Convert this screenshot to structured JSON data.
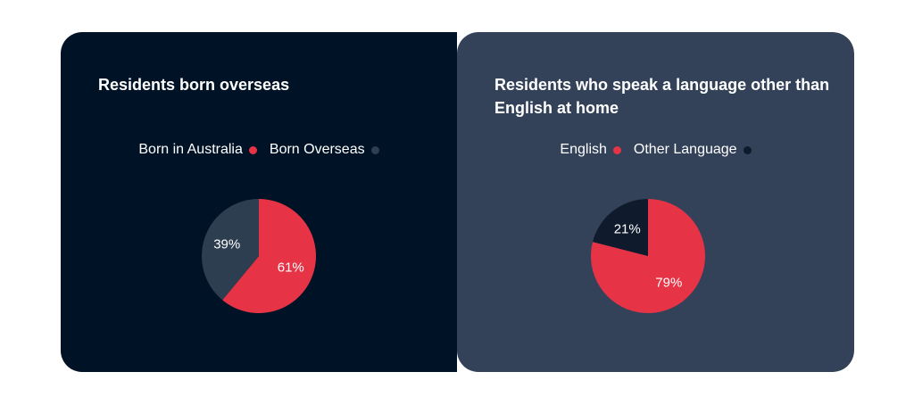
{
  "colors": {
    "left_panel_bg": "#001326",
    "right_panel_bg": "#334259",
    "red": "#E63446",
    "slate": "#2D3E51",
    "navy": "#0F1B2D"
  },
  "panels": [
    {
      "title": "Residents born overseas",
      "legend": [
        {
          "label": "Born in Australia",
          "color": "#E63446"
        },
        {
          "label": "Born Overseas",
          "color": "#2D3E51"
        }
      ]
    },
    {
      "title": "Residents who speak a language other than English at home",
      "legend": [
        {
          "label": "English",
          "color": "#E63446"
        },
        {
          "label": "Other Language",
          "color": "#0F1B2D"
        }
      ]
    }
  ],
  "chart_data": [
    {
      "type": "pie",
      "title": "Residents born overseas",
      "labels": [
        "Born in Australia",
        "Born Overseas"
      ],
      "values": [
        61,
        39
      ],
      "data_labels": [
        "61%",
        "39%"
      ],
      "colors": [
        "#E63446",
        "#2D3E51"
      ],
      "legend_position": "top-center"
    },
    {
      "type": "pie",
      "title": "Residents who speak a language other than English at home",
      "labels": [
        "English",
        "Other Language"
      ],
      "values": [
        79,
        21
      ],
      "data_labels": [
        "79%",
        "21%"
      ],
      "colors": [
        "#E63446",
        "#0F1B2D"
      ],
      "legend_position": "top-center"
    }
  ]
}
